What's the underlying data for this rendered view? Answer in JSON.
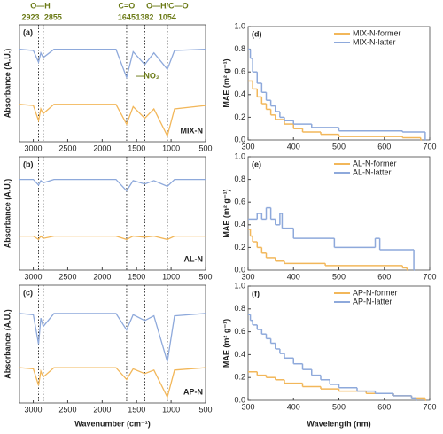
{
  "chart_data": [
    {
      "type": "line",
      "panel_label": "(a)",
      "sample_label": "MIX-N",
      "ylabel": "Absorbance (A.U.)",
      "band_labels": [
        "O—H",
        "C=O",
        "O—H/C—O"
      ],
      "annotation": "—NO₂",
      "reference_lines": [
        2923,
        2855,
        1645,
        1382,
        1054
      ],
      "xlim": [
        3200,
        500
      ],
      "xticks": [
        3000,
        2500,
        2000,
        1500,
        1000,
        500
      ],
      "ylim": [
        0,
        1
      ],
      "x": [
        3200,
        3000,
        2923,
        2890,
        2855,
        2700,
        1800,
        1645,
        1550,
        1382,
        1250,
        1054,
        950,
        500
      ],
      "series": [
        {
          "color": "#8ea9db",
          "values": [
            0.79,
            0.78,
            0.68,
            0.76,
            0.72,
            0.79,
            0.79,
            0.55,
            0.77,
            0.66,
            0.76,
            0.62,
            0.78,
            0.79
          ]
        },
        {
          "color": "#f2b75a",
          "values": [
            0.32,
            0.31,
            0.18,
            0.28,
            0.24,
            0.32,
            0.32,
            0.15,
            0.3,
            0.2,
            0.28,
            0.05,
            0.28,
            0.31
          ]
        }
      ]
    },
    {
      "type": "line",
      "panel_label": "(b)",
      "sample_label": "AL-N",
      "ylabel": "Absorbance (A.U.)",
      "reference_lines": [
        2923,
        2855,
        1645,
        1382,
        1054
      ],
      "xlim": [
        3200,
        500
      ],
      "xticks": [
        3000,
        2500,
        2000,
        1500,
        1000,
        500
      ],
      "ylim": [
        0,
        1
      ],
      "x": [
        3200,
        3000,
        2923,
        2890,
        2855,
        2700,
        1800,
        1645,
        1550,
        1382,
        1250,
        1054,
        950,
        500
      ],
      "series": [
        {
          "color": "#8ea9db",
          "values": [
            0.8,
            0.8,
            0.75,
            0.79,
            0.77,
            0.8,
            0.8,
            0.7,
            0.79,
            0.76,
            0.79,
            0.74,
            0.8,
            0.8
          ]
        },
        {
          "color": "#f2b75a",
          "values": [
            0.3,
            0.3,
            0.27,
            0.3,
            0.28,
            0.3,
            0.3,
            0.27,
            0.3,
            0.29,
            0.3,
            0.27,
            0.3,
            0.3
          ]
        }
      ]
    },
    {
      "type": "line",
      "panel_label": "(c)",
      "sample_label": "AP-N",
      "ylabel": "Absorbance (A.U.)",
      "xlabel": "Wavenumber (cm⁻¹)",
      "reference_lines": [
        2923,
        2855,
        1645,
        1382,
        1054
      ],
      "xlim": [
        3200,
        500
      ],
      "xticks": [
        3000,
        2500,
        2000,
        1500,
        1000,
        500
      ],
      "ylim": [
        0,
        1
      ],
      "x": [
        3200,
        3000,
        2923,
        2890,
        2855,
        2700,
        1800,
        1645,
        1550,
        1382,
        1250,
        1054,
        950,
        500
      ],
      "series": [
        {
          "color": "#8ea9db",
          "values": [
            0.76,
            0.75,
            0.5,
            0.72,
            0.65,
            0.76,
            0.76,
            0.62,
            0.75,
            0.7,
            0.74,
            0.35,
            0.74,
            0.76
          ]
        },
        {
          "color": "#f2b75a",
          "values": [
            0.3,
            0.29,
            0.15,
            0.27,
            0.22,
            0.3,
            0.3,
            0.2,
            0.29,
            0.25,
            0.28,
            0.05,
            0.28,
            0.3
          ]
        }
      ]
    },
    {
      "type": "step",
      "panel_label": "(d)",
      "ylabel": "MAE (m² g⁻¹)",
      "legend": "upper right",
      "xlim": [
        300,
        700
      ],
      "xticks": [
        300,
        400,
        500,
        600,
        700
      ],
      "ylim": [
        0,
        1
      ],
      "yticks": [
        {
          "value": 0,
          "label": "0.0"
        },
        0.2,
        0.4,
        0.6,
        0.8,
        {
          "value": 1,
          "label": "1.0"
        }
      ],
      "series": [
        {
          "name": "MIX-N-former",
          "color": "#f2b75a",
          "x": [
            300,
            310,
            320,
            330,
            340,
            350,
            360,
            380,
            400,
            420,
            460,
            500,
            640,
            680
          ],
          "values": [
            0.52,
            0.45,
            0.38,
            0.32,
            0.27,
            0.22,
            0.18,
            0.14,
            0.1,
            0.07,
            0.05,
            0.03,
            0.02,
            0
          ]
        },
        {
          "name": "MIX-N-latter",
          "color": "#8ea9db",
          "x": [
            300,
            305,
            310,
            320,
            330,
            340,
            350,
            360,
            370,
            380,
            400,
            440,
            500,
            640,
            690
          ],
          "values": [
            0.8,
            0.72,
            0.6,
            0.5,
            0.42,
            0.35,
            0.3,
            0.25,
            0.2,
            0.17,
            0.14,
            0.11,
            0.08,
            0.07,
            0
          ]
        }
      ]
    },
    {
      "type": "step",
      "panel_label": "(e)",
      "ylabel": "MAE (m² g⁻¹)",
      "legend": "upper right",
      "xlim": [
        300,
        700
      ],
      "xticks": [
        300,
        400,
        500,
        600,
        700
      ],
      "ylim": [
        0,
        1
      ],
      "yticks": [
        {
          "value": 0,
          "label": "0.0"
        },
        0.2,
        0.4,
        0.6,
        0.8,
        {
          "value": 1,
          "label": "1.0"
        }
      ],
      "series": [
        {
          "name": "AL-N-former",
          "color": "#f2b75a",
          "x": [
            300,
            305,
            310,
            320,
            330,
            340,
            360,
            380,
            470,
            640,
            650
          ],
          "values": [
            0.36,
            0.3,
            0.25,
            0.2,
            0.15,
            0.11,
            0.08,
            0.06,
            0.04,
            0.02,
            0
          ]
        },
        {
          "name": "AL-N-latter",
          "color": "#8ea9db",
          "x": [
            300,
            320,
            330,
            340,
            350,
            360,
            370,
            375,
            400,
            480,
            490,
            580,
            590,
            660,
            665
          ],
          "values": [
            0.45,
            0.5,
            0.45,
            0.55,
            0.45,
            0.4,
            0.5,
            0.37,
            0.28,
            0.28,
            0.2,
            0.28,
            0.18,
            0.18,
            0
          ]
        }
      ]
    },
    {
      "type": "step",
      "panel_label": "(f)",
      "ylabel": "MAE (m² g⁻¹)",
      "xlabel": "Wavelength (nm)",
      "legend": "upper right",
      "xlim": [
        300,
        700
      ],
      "xticks": [
        300,
        400,
        500,
        600,
        700
      ],
      "ylim": [
        0,
        1
      ],
      "yticks": [
        {
          "value": 0,
          "label": "0.0"
        },
        0.2,
        0.4,
        0.6,
        0.8,
        {
          "value": 1,
          "label": "1.0"
        }
      ],
      "series": [
        {
          "name": "AP-N-former",
          "color": "#f2b75a",
          "x": [
            300,
            320,
            340,
            360,
            380,
            420,
            460,
            500,
            560,
            620,
            660,
            690
          ],
          "values": [
            0.25,
            0.22,
            0.2,
            0.18,
            0.15,
            0.12,
            0.1,
            0.08,
            0.06,
            0.04,
            0.02,
            0
          ]
        },
        {
          "name": "AP-N-latter",
          "color": "#8ea9db",
          "x": [
            300,
            305,
            310,
            320,
            330,
            340,
            350,
            360,
            370,
            380,
            400,
            420,
            440,
            460,
            480,
            500,
            540,
            580,
            620,
            660,
            670
          ],
          "values": [
            0.75,
            0.7,
            0.66,
            0.62,
            0.58,
            0.54,
            0.5,
            0.45,
            0.41,
            0.37,
            0.32,
            0.27,
            0.22,
            0.18,
            0.14,
            0.11,
            0.08,
            0.06,
            0.04,
            0.02,
            0
          ]
        }
      ]
    }
  ]
}
